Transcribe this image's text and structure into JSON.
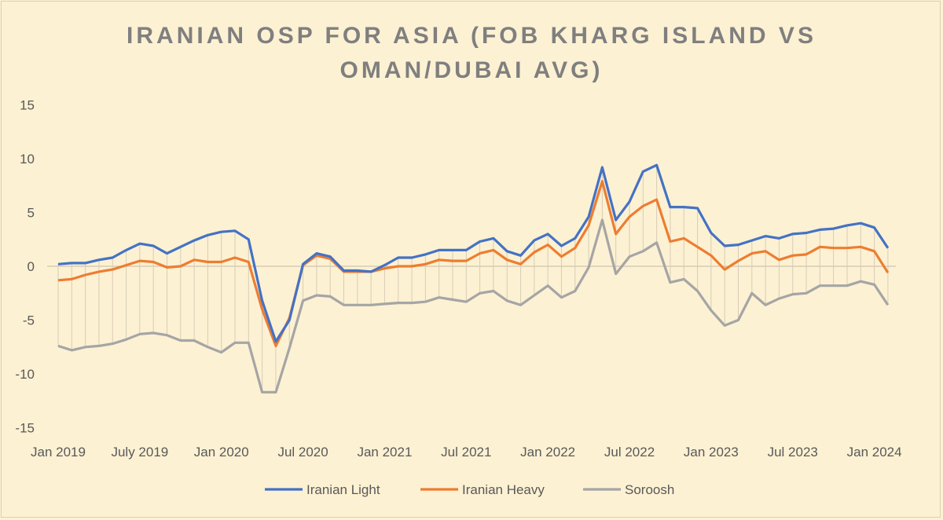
{
  "chart_data": {
    "type": "line",
    "title_line1": "IRANIAN OSP FOR ASIA (FOB KHARG ISLAND VS",
    "title_line2": "OMAN/DUBAI AVG)",
    "xlabel": "",
    "ylabel": "",
    "ylim": [
      -15,
      15
    ],
    "yticks": [
      15,
      10,
      5,
      0,
      -5,
      -10,
      -15
    ],
    "x_range": "Jan 2019 - Feb 2024 (monthly)",
    "xtick_labels": [
      {
        "index": 0,
        "label": "Jan 2019"
      },
      {
        "index": 6,
        "label": "July 2019"
      },
      {
        "index": 12,
        "label": "Jan 2020"
      },
      {
        "index": 18,
        "label": "Jul 2020"
      },
      {
        "index": 24,
        "label": "Jan 2021"
      },
      {
        "index": 30,
        "label": "Jul 2021"
      },
      {
        "index": 36,
        "label": "Jan 2022"
      },
      {
        "index": 42,
        "label": "Jul 2022"
      },
      {
        "index": 48,
        "label": "Jan 2023"
      },
      {
        "index": 54,
        "label": "Jul 2023"
      },
      {
        "index": 60,
        "label": "Jan 2024"
      }
    ],
    "grid": "zero-line only, vertical drop lines",
    "legend_position": "bottom",
    "series": [
      {
        "name": "Iranian Light",
        "color": "#4472c4",
        "values": [
          0.2,
          0.3,
          0.3,
          0.6,
          0.8,
          1.5,
          2.1,
          1.9,
          1.2,
          1.8,
          2.4,
          2.9,
          3.2,
          3.3,
          2.5,
          -3.2,
          -7.0,
          -5.0,
          0.2,
          1.2,
          0.9,
          -0.4,
          -0.4,
          -0.5,
          0.1,
          0.8,
          0.8,
          1.1,
          1.5,
          1.5,
          1.5,
          2.3,
          2.6,
          1.4,
          1.0,
          2.4,
          3.0,
          1.9,
          2.6,
          4.6,
          9.2,
          4.3,
          6.0,
          8.8,
          9.4,
          5.5,
          5.5,
          5.4,
          3.1,
          1.9,
          2.0,
          2.4,
          2.8,
          2.6,
          3.0,
          3.1,
          3.4,
          3.5,
          3.8,
          4.0,
          3.6,
          1.7
        ]
      },
      {
        "name": "Iranian Heavy",
        "color": "#ed7d31",
        "values": [
          -1.3,
          -1.2,
          -0.8,
          -0.5,
          -0.3,
          0.1,
          0.5,
          0.4,
          -0.1,
          0.0,
          0.6,
          0.4,
          0.4,
          0.8,
          0.4,
          -4.0,
          -7.4,
          -4.8,
          0.1,
          1.0,
          0.7,
          -0.5,
          -0.5,
          -0.5,
          -0.2,
          0.0,
          0.0,
          0.2,
          0.6,
          0.5,
          0.5,
          1.2,
          1.5,
          0.6,
          0.2,
          1.3,
          2.0,
          0.9,
          1.7,
          3.8,
          7.9,
          3.0,
          4.6,
          5.6,
          6.2,
          2.3,
          2.6,
          1.8,
          1.0,
          -0.3,
          0.5,
          1.2,
          1.4,
          0.6,
          1.0,
          1.1,
          1.8,
          1.7,
          1.7,
          1.8,
          1.4,
          -0.6
        ]
      },
      {
        "name": "Soroosh",
        "color": "#a5a5a5",
        "values": [
          -7.4,
          -7.8,
          -7.5,
          -7.4,
          -7.2,
          -6.8,
          -6.3,
          -6.2,
          -6.4,
          -6.9,
          -6.9,
          -7.5,
          -8.0,
          -7.1,
          -7.1,
          -11.7,
          -11.7,
          -7.6,
          -3.2,
          -2.7,
          -2.8,
          -3.6,
          -3.6,
          -3.6,
          -3.5,
          -3.4,
          -3.4,
          -3.3,
          -2.9,
          -3.1,
          -3.3,
          -2.5,
          -2.3,
          -3.2,
          -3.6,
          -2.7,
          -1.8,
          -2.9,
          -2.3,
          -0.1,
          4.3,
          -0.7,
          0.9,
          1.4,
          2.2,
          -1.5,
          -1.2,
          -2.3,
          -4.1,
          -5.5,
          -5.0,
          -2.5,
          -3.6,
          -3.0,
          -2.6,
          -2.5,
          -1.8,
          -1.8,
          -1.8,
          -1.4,
          -1.7,
          -3.6
        ]
      }
    ]
  }
}
